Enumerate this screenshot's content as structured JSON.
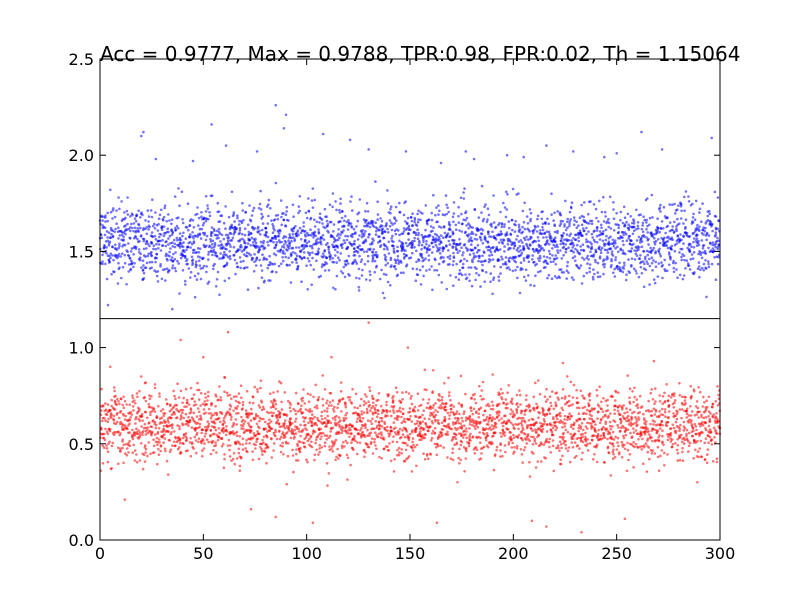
{
  "chart_data": {
    "type": "scatter",
    "title": "Acc = 0.9777, Max = 0.9788, TPR:0.98, FPR:0.02, Th = 1.15064",
    "xlabel": "",
    "ylabel": "",
    "xlim": [
      0,
      300
    ],
    "ylim": [
      0.0,
      2.5
    ],
    "xticks": [
      "0",
      "50",
      "100",
      "150",
      "200",
      "250",
      "300"
    ],
    "yticks": [
      "0.0",
      "0.5",
      "1.0",
      "1.5",
      "2.0",
      "2.5"
    ],
    "grid": false,
    "threshold": 1.15064,
    "series": [
      {
        "color": "#0000ff",
        "points_per_x": 10,
        "y_mean": 1.55,
        "y_spread": 0.2,
        "y_range": [
          1.08,
          2.26
        ],
        "values_sample": [
          [
            0,
            1.66
          ],
          [
            2,
            1.52
          ],
          [
            5,
            1.82
          ],
          [
            9,
            1.78
          ],
          [
            13,
            1.71
          ],
          [
            20,
            2.1
          ],
          [
            21,
            2.12
          ],
          [
            27,
            1.98
          ],
          [
            35,
            1.2
          ],
          [
            45,
            1.97
          ],
          [
            54,
            2.16
          ],
          [
            61,
            2.05
          ],
          [
            76,
            2.02
          ],
          [
            85,
            2.26
          ],
          [
            89,
            2.14
          ],
          [
            90,
            2.21
          ],
          [
            108,
            2.11
          ],
          [
            121,
            2.08
          ],
          [
            130,
            2.03
          ],
          [
            148,
            2.02
          ],
          [
            165,
            1.96
          ],
          [
            177,
            2.02
          ],
          [
            181,
            1.98
          ],
          [
            197,
            2.0
          ],
          [
            205,
            1.99
          ],
          [
            216,
            2.05
          ],
          [
            229,
            2.02
          ],
          [
            244,
            1.99
          ],
          [
            250,
            2.01
          ],
          [
            262,
            2.12
          ],
          [
            272,
            2.03
          ],
          [
            296,
            2.09
          ],
          [
            299,
            1.78
          ]
        ]
      },
      {
        "color": "#ff0000",
        "points_per_x": 10,
        "y_mean": 0.6,
        "y_spread": 0.18,
        "y_range": [
          0.04,
          1.25
        ],
        "values_sample": [
          [
            5,
            0.9
          ],
          [
            12,
            0.21
          ],
          [
            20,
            0.85
          ],
          [
            33,
            0.34
          ],
          [
            39,
            1.04
          ],
          [
            50,
            0.95
          ],
          [
            62,
            1.08
          ],
          [
            73,
            0.16
          ],
          [
            85,
            0.12
          ],
          [
            103,
            0.09
          ],
          [
            112,
            0.95
          ],
          [
            130,
            1.13
          ],
          [
            149,
            1.0
          ],
          [
            163,
            0.09
          ],
          [
            173,
            0.3
          ],
          [
            190,
            0.86
          ],
          [
            209,
            0.1
          ],
          [
            216,
            0.07
          ],
          [
            224,
            0.92
          ],
          [
            233,
            0.04
          ],
          [
            254,
            0.11
          ],
          [
            268,
            0.93
          ],
          [
            289,
            0.3
          ],
          [
            299,
            0.7
          ]
        ]
      }
    ]
  }
}
